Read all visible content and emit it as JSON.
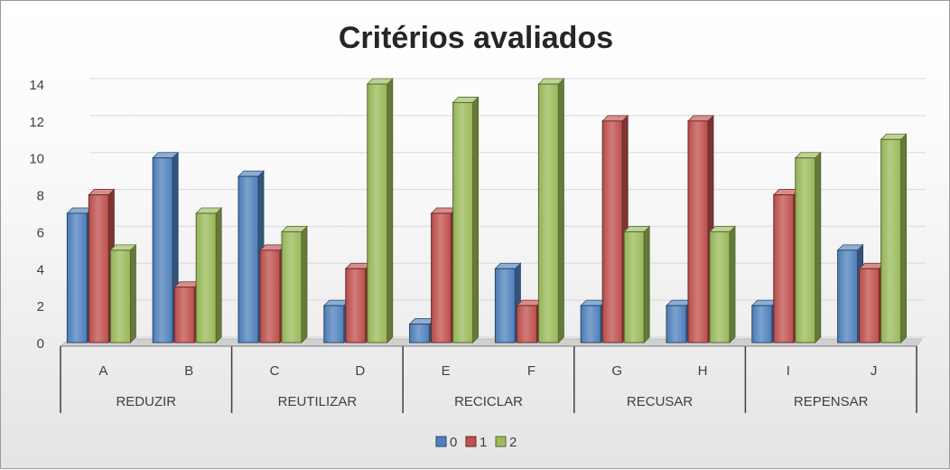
{
  "chart_data": {
    "type": "bar",
    "title": "Critérios avaliados",
    "categories": [
      "A",
      "B",
      "C",
      "D",
      "E",
      "F",
      "G",
      "H",
      "I",
      "J"
    ],
    "groups": [
      {
        "label": "REDUZIR",
        "categories": [
          "A",
          "B"
        ]
      },
      {
        "label": "REUTILIZAR",
        "categories": [
          "C",
          "D"
        ]
      },
      {
        "label": "RECICLAR",
        "categories": [
          "E",
          "F"
        ]
      },
      {
        "label": "RECUSAR",
        "categories": [
          "G",
          "H"
        ]
      },
      {
        "label": "REPENSAR",
        "categories": [
          "I",
          "J"
        ]
      }
    ],
    "series": [
      {
        "name": "0",
        "color": "#4f81bd",
        "values": [
          7,
          10,
          9,
          2,
          1,
          4,
          2,
          2,
          2,
          5
        ]
      },
      {
        "name": "1",
        "color": "#c0504d",
        "values": [
          8,
          3,
          5,
          4,
          7,
          2,
          12,
          12,
          8,
          4
        ]
      },
      {
        "name": "2",
        "color": "#9bbb59",
        "values": [
          5,
          7,
          6,
          14,
          13,
          14,
          6,
          6,
          10,
          11
        ]
      }
    ],
    "ylim": [
      0,
      14
    ],
    "yticks": [
      0,
      2,
      4,
      6,
      8,
      10,
      12,
      14
    ],
    "grid": true,
    "legend_position": "bottom",
    "style": "3d-clustered-column"
  }
}
